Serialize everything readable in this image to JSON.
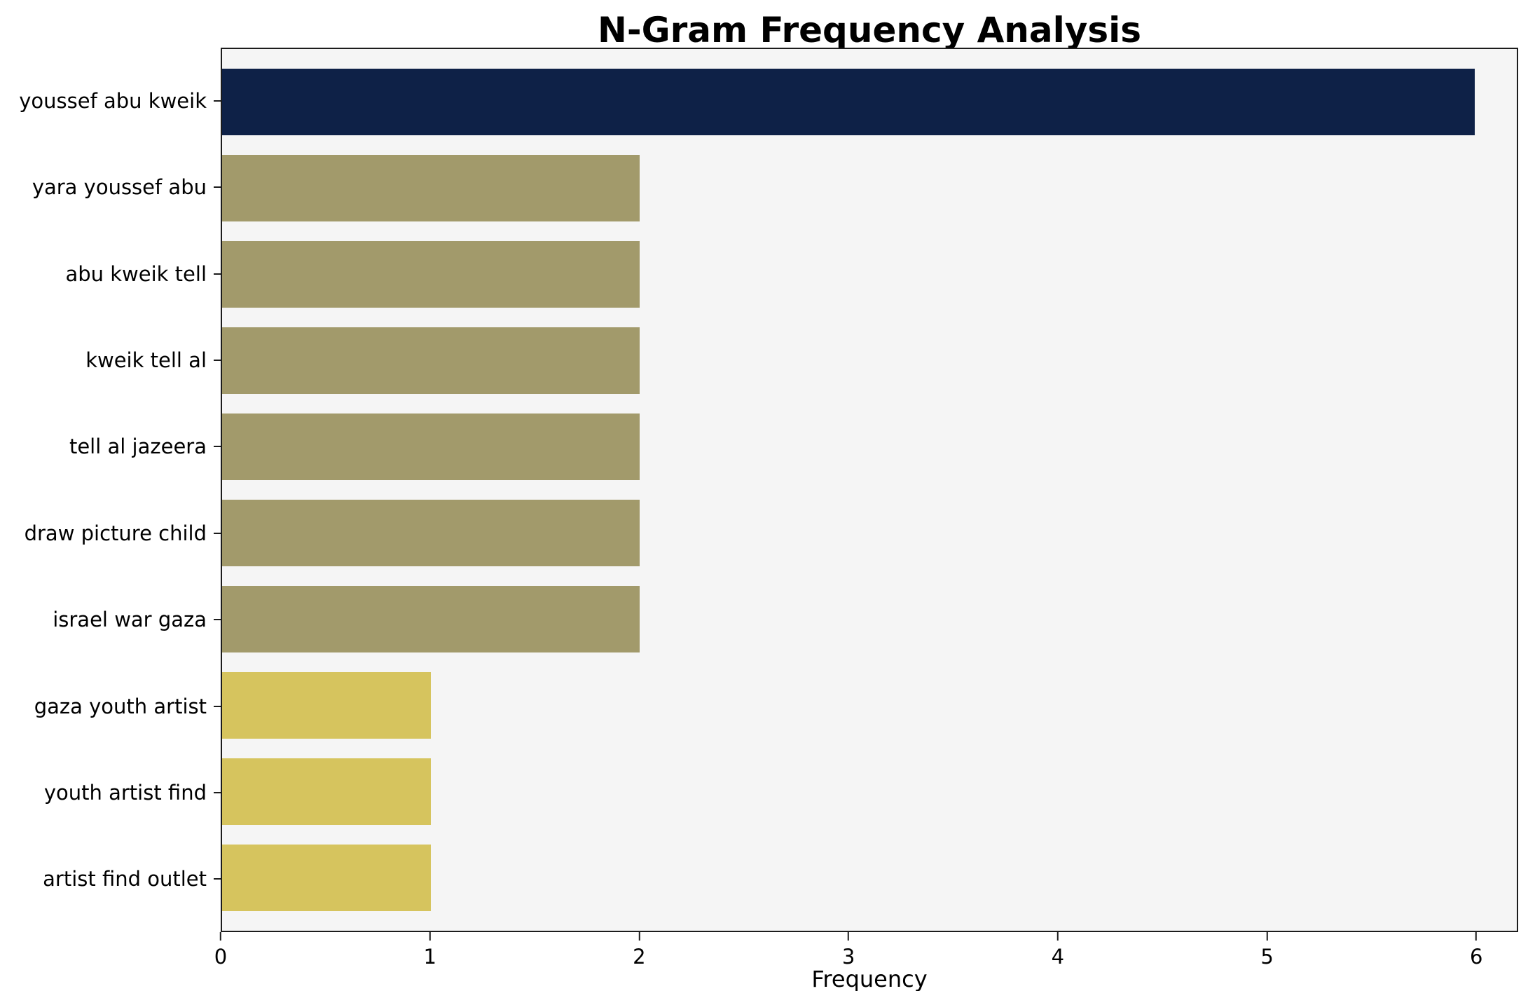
{
  "chart_data": {
    "type": "bar",
    "orientation": "horizontal",
    "title": "N-Gram Frequency Analysis",
    "xlabel": "Frequency",
    "ylabel": "",
    "categories": [
      "youssef abu kweik",
      "yara youssef abu",
      "abu kweik tell",
      "kweik tell al",
      "tell al jazeera",
      "draw picture child",
      "israel war gaza",
      "gaza youth artist",
      "youth artist find",
      "artist find outlet"
    ],
    "values": [
      6,
      2,
      2,
      2,
      2,
      2,
      2,
      1,
      1,
      1
    ],
    "colors": [
      "#0e2147",
      "#a29a6b",
      "#a29a6b",
      "#a29a6b",
      "#a29a6b",
      "#a29a6b",
      "#a29a6b",
      "#d6c45e",
      "#d6c45e",
      "#d6c45e"
    ],
    "x_ticks": [
      "0",
      "1",
      "2",
      "3",
      "4",
      "5",
      "6"
    ],
    "xlim": [
      0,
      6.2
    ],
    "grid": false,
    "legend": "none",
    "plot_background": "#f5f5f5",
    "figure_background": "#ffffff"
  }
}
